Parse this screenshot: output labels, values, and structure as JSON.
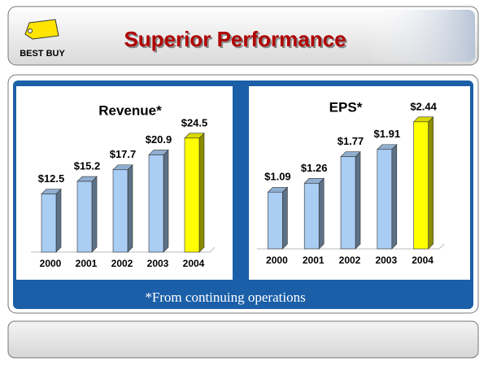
{
  "header": {
    "logo": "BEST BUY",
    "title": "Superior Performance"
  },
  "chart_data": [
    {
      "type": "bar",
      "title": "Revenue*",
      "categories": [
        "2000",
        "2001",
        "2002",
        "2003",
        "2004"
      ],
      "values": [
        12.5,
        15.2,
        17.7,
        20.9,
        24.5
      ],
      "value_labels": [
        "$12.5",
        "$15.2",
        "$17.7",
        "$20.9",
        "$24.5"
      ],
      "colors": [
        "#a9cdf3",
        "#a9cdf3",
        "#a9cdf3",
        "#a9cdf3",
        "#ffff00"
      ],
      "ylim": [
        0,
        25
      ]
    },
    {
      "type": "bar",
      "title": "EPS*",
      "categories": [
        "2000",
        "2001",
        "2002",
        "2003",
        "2004"
      ],
      "values": [
        1.09,
        1.26,
        1.77,
        1.91,
        2.44
      ],
      "value_labels": [
        "$1.09",
        "$1.26",
        "$1.77",
        "$1.91",
        "$2.44"
      ],
      "colors": [
        "#a9cdf3",
        "#a9cdf3",
        "#a9cdf3",
        "#a9cdf3",
        "#ffff00"
      ],
      "ylim": [
        0,
        2.5
      ]
    }
  ],
  "footnote": "*From continuing operations"
}
